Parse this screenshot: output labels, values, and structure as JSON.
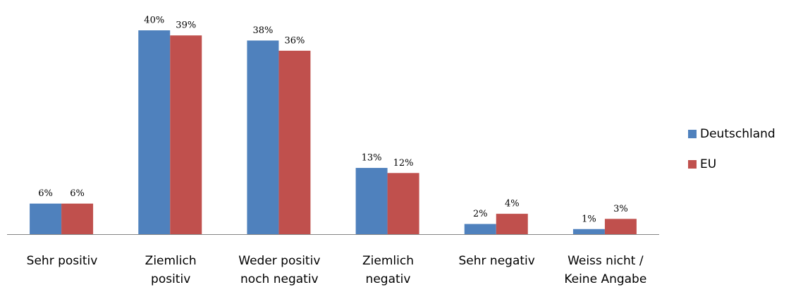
{
  "chart_data": {
    "type": "bar",
    "categories": [
      "Sehr positiv",
      "Ziemlich\npositiv",
      "Weder positiv\nnoch negativ",
      "Ziemlich\nnegativ",
      "Sehr negativ",
      "Weiss nicht /\nKeine Angabe"
    ],
    "series": [
      {
        "name": "Deutschland",
        "color": "#4f81bd",
        "values": [
          6,
          40,
          38,
          13,
          2,
          1
        ],
        "value_labels": [
          "6%",
          "40%",
          "38%",
          "13%",
          "2%",
          "1%"
        ]
      },
      {
        "name": "EU",
        "color": "#c0504d",
        "values": [
          6,
          39,
          36,
          12,
          4,
          3
        ],
        "value_labels": [
          "6%",
          "39%",
          "36%",
          "12%",
          "4%",
          "3%"
        ]
      }
    ],
    "legend": "right"
  }
}
